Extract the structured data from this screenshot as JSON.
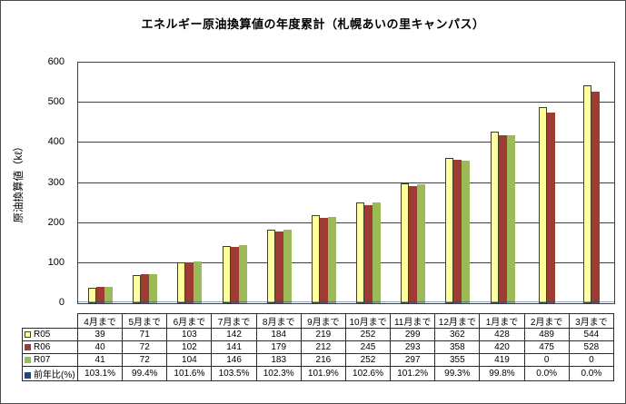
{
  "chart": {
    "title": "エネルギー原油換算値の年度累計（札幌あいの里キャンパス）",
    "y_axis_title": "原油換算値（kℓ）"
  },
  "chart_data": {
    "type": "bar",
    "title": "エネルギー原油換算値の年度累計（札幌あいの里キャンパス）",
    "xlabel": "",
    "ylabel": "原油換算値（kℓ）",
    "ylim": [
      0,
      600
    ],
    "yticks": [
      0,
      100,
      200,
      300,
      400,
      500,
      600
    ],
    "grid": true,
    "legend_position": "data-table-left-column",
    "categories": [
      "4月まで",
      "5月まで",
      "6月まで",
      "7月まで",
      "8月まで",
      "9月まで",
      "10月まで",
      "11月まで",
      "12月まで",
      "1月まで",
      "2月まで",
      "3月まで"
    ],
    "series": [
      {
        "name": "R05",
        "type": "bar",
        "color": "#FFFF9C",
        "border_color": "#3F3F28",
        "values": [
          39,
          71,
          103,
          142,
          184,
          219,
          252,
          299,
          362,
          428,
          489,
          544
        ]
      },
      {
        "name": "R06",
        "type": "bar",
        "color": "#9E3B33",
        "values": [
          40,
          72,
          102,
          141,
          179,
          212,
          245,
          293,
          358,
          420,
          475,
          528
        ]
      },
      {
        "name": "R07",
        "type": "bar",
        "color": "#9BBB59",
        "values": [
          41,
          72,
          104,
          146,
          183,
          216,
          252,
          297,
          355,
          419,
          0,
          0
        ]
      },
      {
        "name": "前年比(%)",
        "type": "line",
        "color": "#1F497D",
        "values": [
          1.031,
          0.994,
          1.016,
          1.035,
          1.023,
          1.019,
          1.026,
          1.012,
          0.993,
          0.998,
          0,
          0
        ]
      }
    ],
    "colors": {
      "gridline": "#404040",
      "axis": "#404040",
      "background": "#FFFFFF"
    }
  },
  "table": {
    "rows": [
      {
        "label": "R05",
        "key_color": "#FFFF9C",
        "key_border": "#3F3F28",
        "values": [
          "39",
          "71",
          "103",
          "142",
          "184",
          "219",
          "252",
          "299",
          "362",
          "428",
          "489",
          "544"
        ]
      },
      {
        "label": "R06",
        "key_color": "#9E3B33",
        "key_border": "#9E3B33",
        "values": [
          "40",
          "72",
          "102",
          "141",
          "179",
          "212",
          "245",
          "293",
          "358",
          "420",
          "475",
          "528"
        ]
      },
      {
        "label": "R07",
        "key_color": "#9BBB59",
        "key_border": "#9BBB59",
        "values": [
          "41",
          "72",
          "104",
          "146",
          "183",
          "216",
          "252",
          "297",
          "355",
          "419",
          "0",
          "0"
        ]
      },
      {
        "label": "前年比(%)",
        "key_color": "#1F497D",
        "key_border": "#1F497D",
        "values": [
          "103.1%",
          "99.4%",
          "101.6%",
          "103.5%",
          "102.3%",
          "101.9%",
          "102.6%",
          "101.2%",
          "99.3%",
          "99.8%",
          "0.0%",
          "0.0%"
        ]
      }
    ]
  }
}
